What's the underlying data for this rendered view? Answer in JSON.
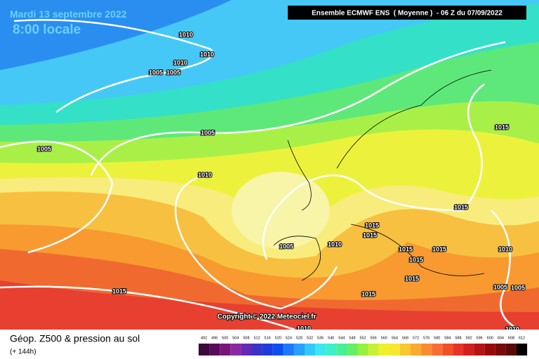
{
  "header": {
    "date": "Mardi 13 septembre 2022",
    "time": "8:00 locale",
    "model": "Ensemble ECMWF ENS  ( Moyenne )  - 06 Z du 07/09/2022"
  },
  "isobar_labels": [
    1010,
    1010,
    1010,
    1005,
    1005,
    1005,
    1005,
    1010,
    1015,
    1015,
    1015,
    1015,
    1005,
    1010,
    1015,
    1015,
    1015,
    1015,
    1010,
    1015,
    1015,
    1005,
    1005,
    1010,
    1010
  ],
  "copyright": "Copyright © 2022 Meteociel.fr",
  "legend": {
    "title": "Géop. Z500 & pression au sol",
    "lead": "(+ 144h)",
    "scale": [
      492,
      496,
      500,
      504,
      508,
      512,
      516,
      520,
      524,
      528,
      532,
      536,
      540,
      544,
      548,
      552,
      556,
      560,
      564,
      568,
      572,
      576,
      580,
      584,
      588,
      592,
      596,
      600,
      604,
      608,
      612
    ]
  }
}
